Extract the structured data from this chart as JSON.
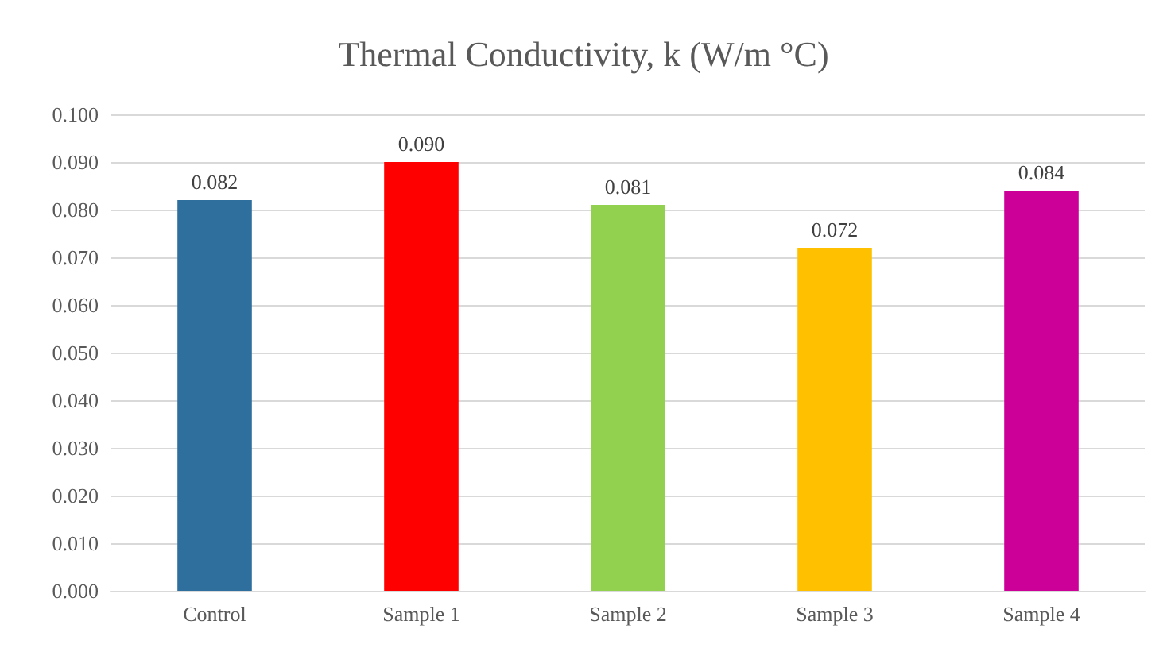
{
  "chart_data": {
    "type": "bar",
    "title": "Thermal Conductivity, k (W/m °C)",
    "categories": [
      "Control",
      "Sample 1",
      "Sample 2",
      "Sample 3",
      "Sample 4"
    ],
    "values": [
      0.082,
      0.09,
      0.081,
      0.072,
      0.084
    ],
    "colors": [
      "#2e6f9e",
      "#ff0000",
      "#92d050",
      "#ffc000",
      "#cc0099"
    ],
    "value_labels": [
      "0.082",
      "0.090",
      "0.081",
      "0.072",
      "0.084"
    ],
    "ylim": [
      0,
      0.1
    ],
    "yticks": [
      {
        "value": 0,
        "label": "0.000"
      },
      {
        "value": 0.01,
        "label": "0.010"
      },
      {
        "value": 0.02,
        "label": "0.020"
      },
      {
        "value": 0.03,
        "label": "0.030"
      },
      {
        "value": 0.04,
        "label": "0.040"
      },
      {
        "value": 0.05,
        "label": "0.050"
      },
      {
        "value": 0.06,
        "label": "0.060"
      },
      {
        "value": 0.07,
        "label": "0.070"
      },
      {
        "value": 0.08,
        "label": "0.080"
      },
      {
        "value": 0.09,
        "label": "0.090"
      },
      {
        "value": 0.1,
        "label": "0.100"
      }
    ],
    "grid": "y"
  }
}
